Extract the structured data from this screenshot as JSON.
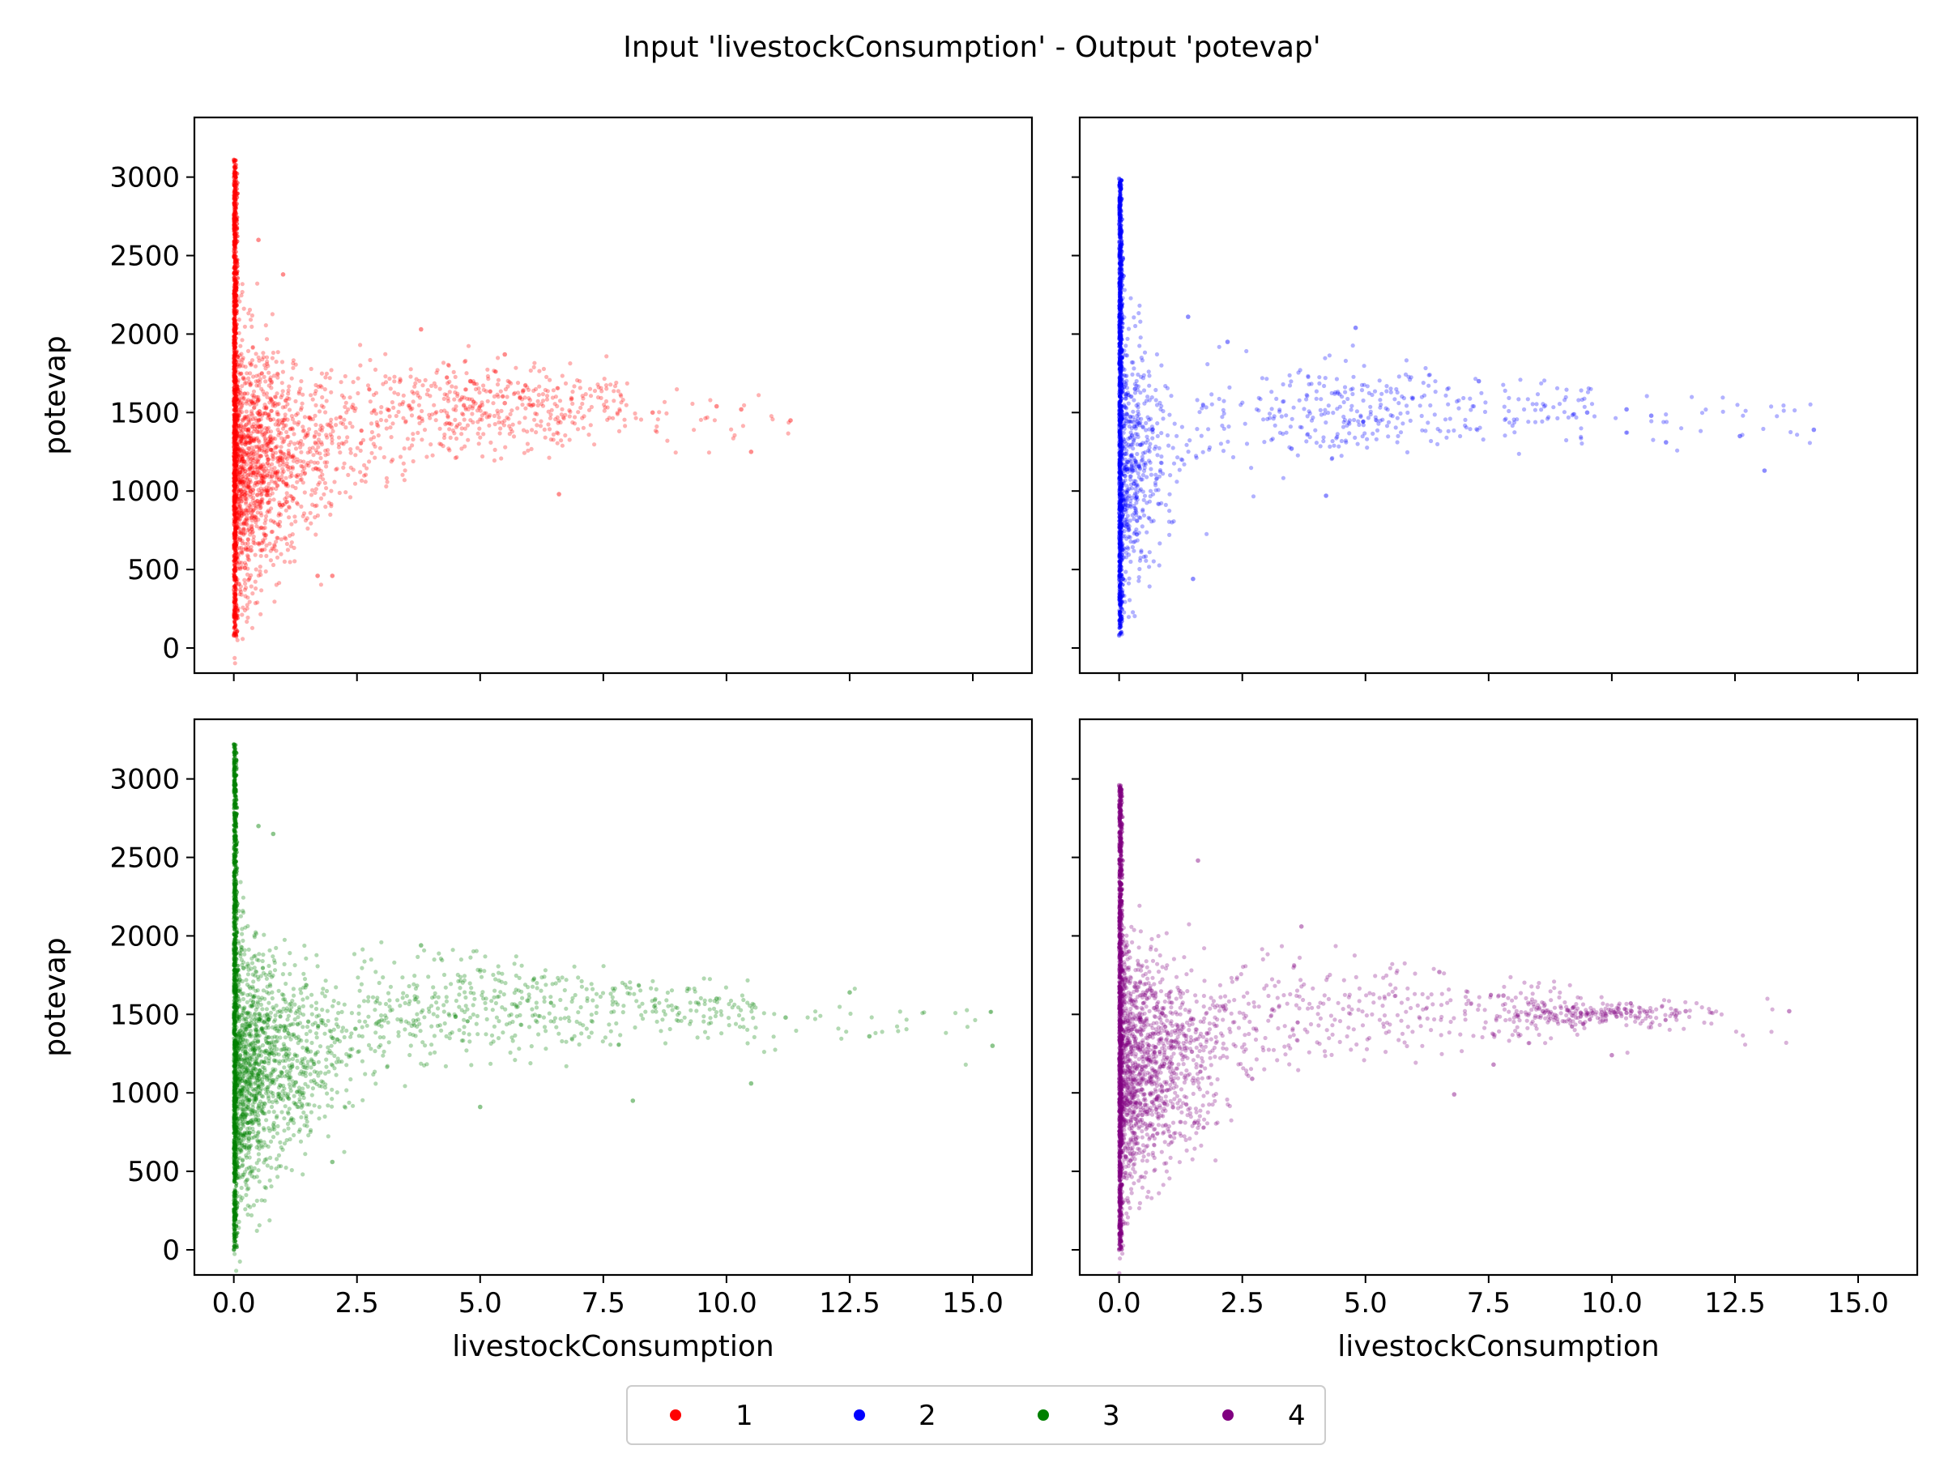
{
  "title": "Input 'livestockConsumption' - Output 'potevap'",
  "legend": {
    "placement": "bottom-center",
    "entries": [
      {
        "label": "1",
        "color": "#ff0000"
      },
      {
        "label": "2",
        "color": "#0000ff"
      },
      {
        "label": "3",
        "color": "#008000"
      },
      {
        "label": "4",
        "color": "#800080"
      }
    ]
  },
  "chart_data": [
    {
      "type": "scatter",
      "series_name": "1",
      "color": "#ff0000",
      "xlabel": "",
      "ylabel": "potevap",
      "xlim": [
        -0.8,
        16.2
      ],
      "ylim": [
        -160,
        3380
      ],
      "xticks": [
        0.0,
        2.5,
        5.0,
        7.5,
        10.0,
        12.5,
        15.0
      ],
      "xtick_labels": [
        "",
        "",
        "",
        "",
        "",
        "",
        ""
      ],
      "yticks": [
        0,
        500,
        1000,
        1500,
        2000,
        2500,
        3000
      ],
      "ytick_labels": [
        "0",
        "500",
        "1000",
        "1500",
        "2000",
        "2500",
        "3000"
      ],
      "x_max": 11.3,
      "y_range": [
        80,
        3110
      ],
      "points": [
        [
          0.0,
          3110
        ],
        [
          0.0,
          2760
        ],
        [
          0.5,
          2600
        ],
        [
          1.0,
          2380
        ],
        [
          3.8,
          2030
        ],
        [
          5.5,
          1870
        ],
        [
          9.8,
          1540
        ],
        [
          10.3,
          1520
        ],
        [
          11.3,
          1450
        ],
        [
          10.5,
          1250
        ],
        [
          8.5,
          1500
        ],
        [
          6.6,
          980
        ],
        [
          2.0,
          460
        ],
        [
          1.7,
          460
        ],
        [
          0.0,
          80
        ],
        [
          4.8,
          1700
        ],
        [
          5.5,
          1560
        ]
      ],
      "cluster": {
        "center": [
          5.0,
          1560
        ],
        "x_spread": 1.6,
        "y_spread": 140
      },
      "density_shape": "dense at x=0 spanning 80 to 3110, fan narrowing to about 1500 at large x"
    },
    {
      "type": "scatter",
      "series_name": "2",
      "color": "#0000ff",
      "xlabel": "",
      "ylabel": "",
      "xlim": [
        -0.8,
        16.2
      ],
      "ylim": [
        -160,
        3380
      ],
      "xticks": [
        0.0,
        2.5,
        5.0,
        7.5,
        10.0,
        12.5,
        15.0
      ],
      "xtick_labels": [
        "",
        "",
        "",
        "",
        "",
        "",
        ""
      ],
      "yticks": [
        0,
        500,
        1000,
        1500,
        2000,
        2500,
        3000
      ],
      "ytick_labels": [
        "",
        "",
        "",
        "",
        "",
        "",
        ""
      ],
      "x_max": 14.1,
      "y_range": [
        80,
        2990
      ],
      "points": [
        [
          0.0,
          2990
        ],
        [
          0.0,
          2700
        ],
        [
          1.4,
          2110
        ],
        [
          2.2,
          1950
        ],
        [
          4.8,
          2040
        ],
        [
          7.3,
          1700
        ],
        [
          9.5,
          1500
        ],
        [
          10.3,
          1520
        ],
        [
          10.8,
          1480
        ],
        [
          11.1,
          1310
        ],
        [
          12.6,
          1350
        ],
        [
          13.1,
          1130
        ],
        [
          14.1,
          1390
        ],
        [
          4.2,
          970
        ],
        [
          3.5,
          1270
        ],
        [
          1.5,
          440
        ],
        [
          0.0,
          80
        ]
      ],
      "cluster": {
        "center": [
          4.8,
          1520
        ],
        "x_spread": 1.8,
        "y_spread": 150
      },
      "density_shape": "very dense narrow band at x=0, sparse points up to x=14"
    },
    {
      "type": "scatter",
      "series_name": "3",
      "color": "#008000",
      "xlabel": "livestockConsumption",
      "ylabel": "potevap",
      "xlim": [
        -0.8,
        16.2
      ],
      "ylim": [
        -160,
        3380
      ],
      "xticks": [
        0.0,
        2.5,
        5.0,
        7.5,
        10.0,
        12.5,
        15.0
      ],
      "xtick_labels": [
        "0.0",
        "2.5",
        "5.0",
        "7.5",
        "10.0",
        "12.5",
        "15.0"
      ],
      "yticks": [
        0,
        500,
        1000,
        1500,
        2000,
        2500,
        3000
      ],
      "ytick_labels": [
        "0",
        "500",
        "1000",
        "1500",
        "2000",
        "2500",
        "3000"
      ],
      "x_max": 15.5,
      "y_range": [
        0,
        3220
      ],
      "points": [
        [
          0.0,
          3220
        ],
        [
          0.0,
          3050
        ],
        [
          0.5,
          2700
        ],
        [
          0.8,
          2650
        ],
        [
          3.8,
          1940
        ],
        [
          12.5,
          1640
        ],
        [
          12.9,
          1360
        ],
        [
          15.4,
          1300
        ],
        [
          10.5,
          1060
        ],
        [
          8.1,
          950
        ],
        [
          5.0,
          910
        ],
        [
          2.0,
          560
        ],
        [
          0.0,
          0
        ],
        [
          11.2,
          1480
        ],
        [
          9.8,
          1600
        ]
      ],
      "cluster": {
        "center": [
          5.0,
          1560
        ],
        "x_spread": 2.2,
        "y_spread": 160
      },
      "density_shape": "dense at x=0 spanning 0 to 3220, fan narrowing to about 1400 at large x"
    },
    {
      "type": "scatter",
      "series_name": "4",
      "color": "#800080",
      "xlabel": "livestockConsumption",
      "ylabel": "",
      "xlim": [
        -0.8,
        16.2
      ],
      "ylim": [
        -160,
        3380
      ],
      "xticks": [
        0.0,
        2.5,
        5.0,
        7.5,
        10.0,
        12.5,
        15.0
      ],
      "xtick_labels": [
        "0.0",
        "2.5",
        "5.0",
        "7.5",
        "10.0",
        "12.5",
        "15.0"
      ],
      "yticks": [
        0,
        500,
        1000,
        1500,
        2000,
        2500,
        3000
      ],
      "ytick_labels": [
        "",
        "",
        "",
        "",
        "",
        "",
        ""
      ],
      "x_max": 13.6,
      "y_range": [
        0,
        2960
      ],
      "points": [
        [
          0.0,
          2960
        ],
        [
          1.6,
          2480
        ],
        [
          3.7,
          2060
        ],
        [
          6.5,
          1770
        ],
        [
          7.8,
          1620
        ],
        [
          8.6,
          1520
        ],
        [
          10.4,
          1520
        ],
        [
          11.5,
          1520
        ],
        [
          13.6,
          1520
        ],
        [
          10.0,
          1240
        ],
        [
          7.6,
          1180
        ],
        [
          6.8,
          990
        ],
        [
          2.7,
          1090
        ],
        [
          0.0,
          0
        ]
      ],
      "cluster": {
        "center": [
          9.8,
          1510
        ],
        "x_spread": 1.6,
        "y_spread": 30
      },
      "density_shape": "dense at x=0 spanning 0 to 2960, thin band near 1500 extending to x=13.6"
    }
  ]
}
